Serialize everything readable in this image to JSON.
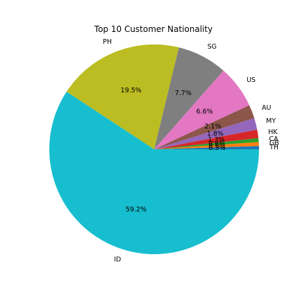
{
  "chart_data": {
    "type": "pie",
    "title": "Top 10 Customer Nationality",
    "start_angle_deg": 0,
    "direction": "counterclockwise",
    "categories": [
      "TH",
      "GB",
      "CA",
      "HK",
      "MY",
      "AU",
      "US",
      "SG",
      "PH",
      "ID"
    ],
    "values": [
      0.5,
      0.6,
      0.6,
      1.3,
      1.8,
      2.1,
      6.6,
      7.7,
      19.5,
      59.2
    ],
    "value_labels": [
      "0.5%",
      "0.6%",
      "0.6%",
      "1.3%",
      "1.8%",
      "2.1%",
      "6.6%",
      "7.7%",
      "19.5%",
      "59.2%"
    ],
    "colors": [
      "#1f77b4",
      "#ff7f0e",
      "#2ca02c",
      "#d62728",
      "#9467bd",
      "#8c564b",
      "#e377c2",
      "#7f7f7f",
      "#bcbd22",
      "#17becf"
    ]
  }
}
